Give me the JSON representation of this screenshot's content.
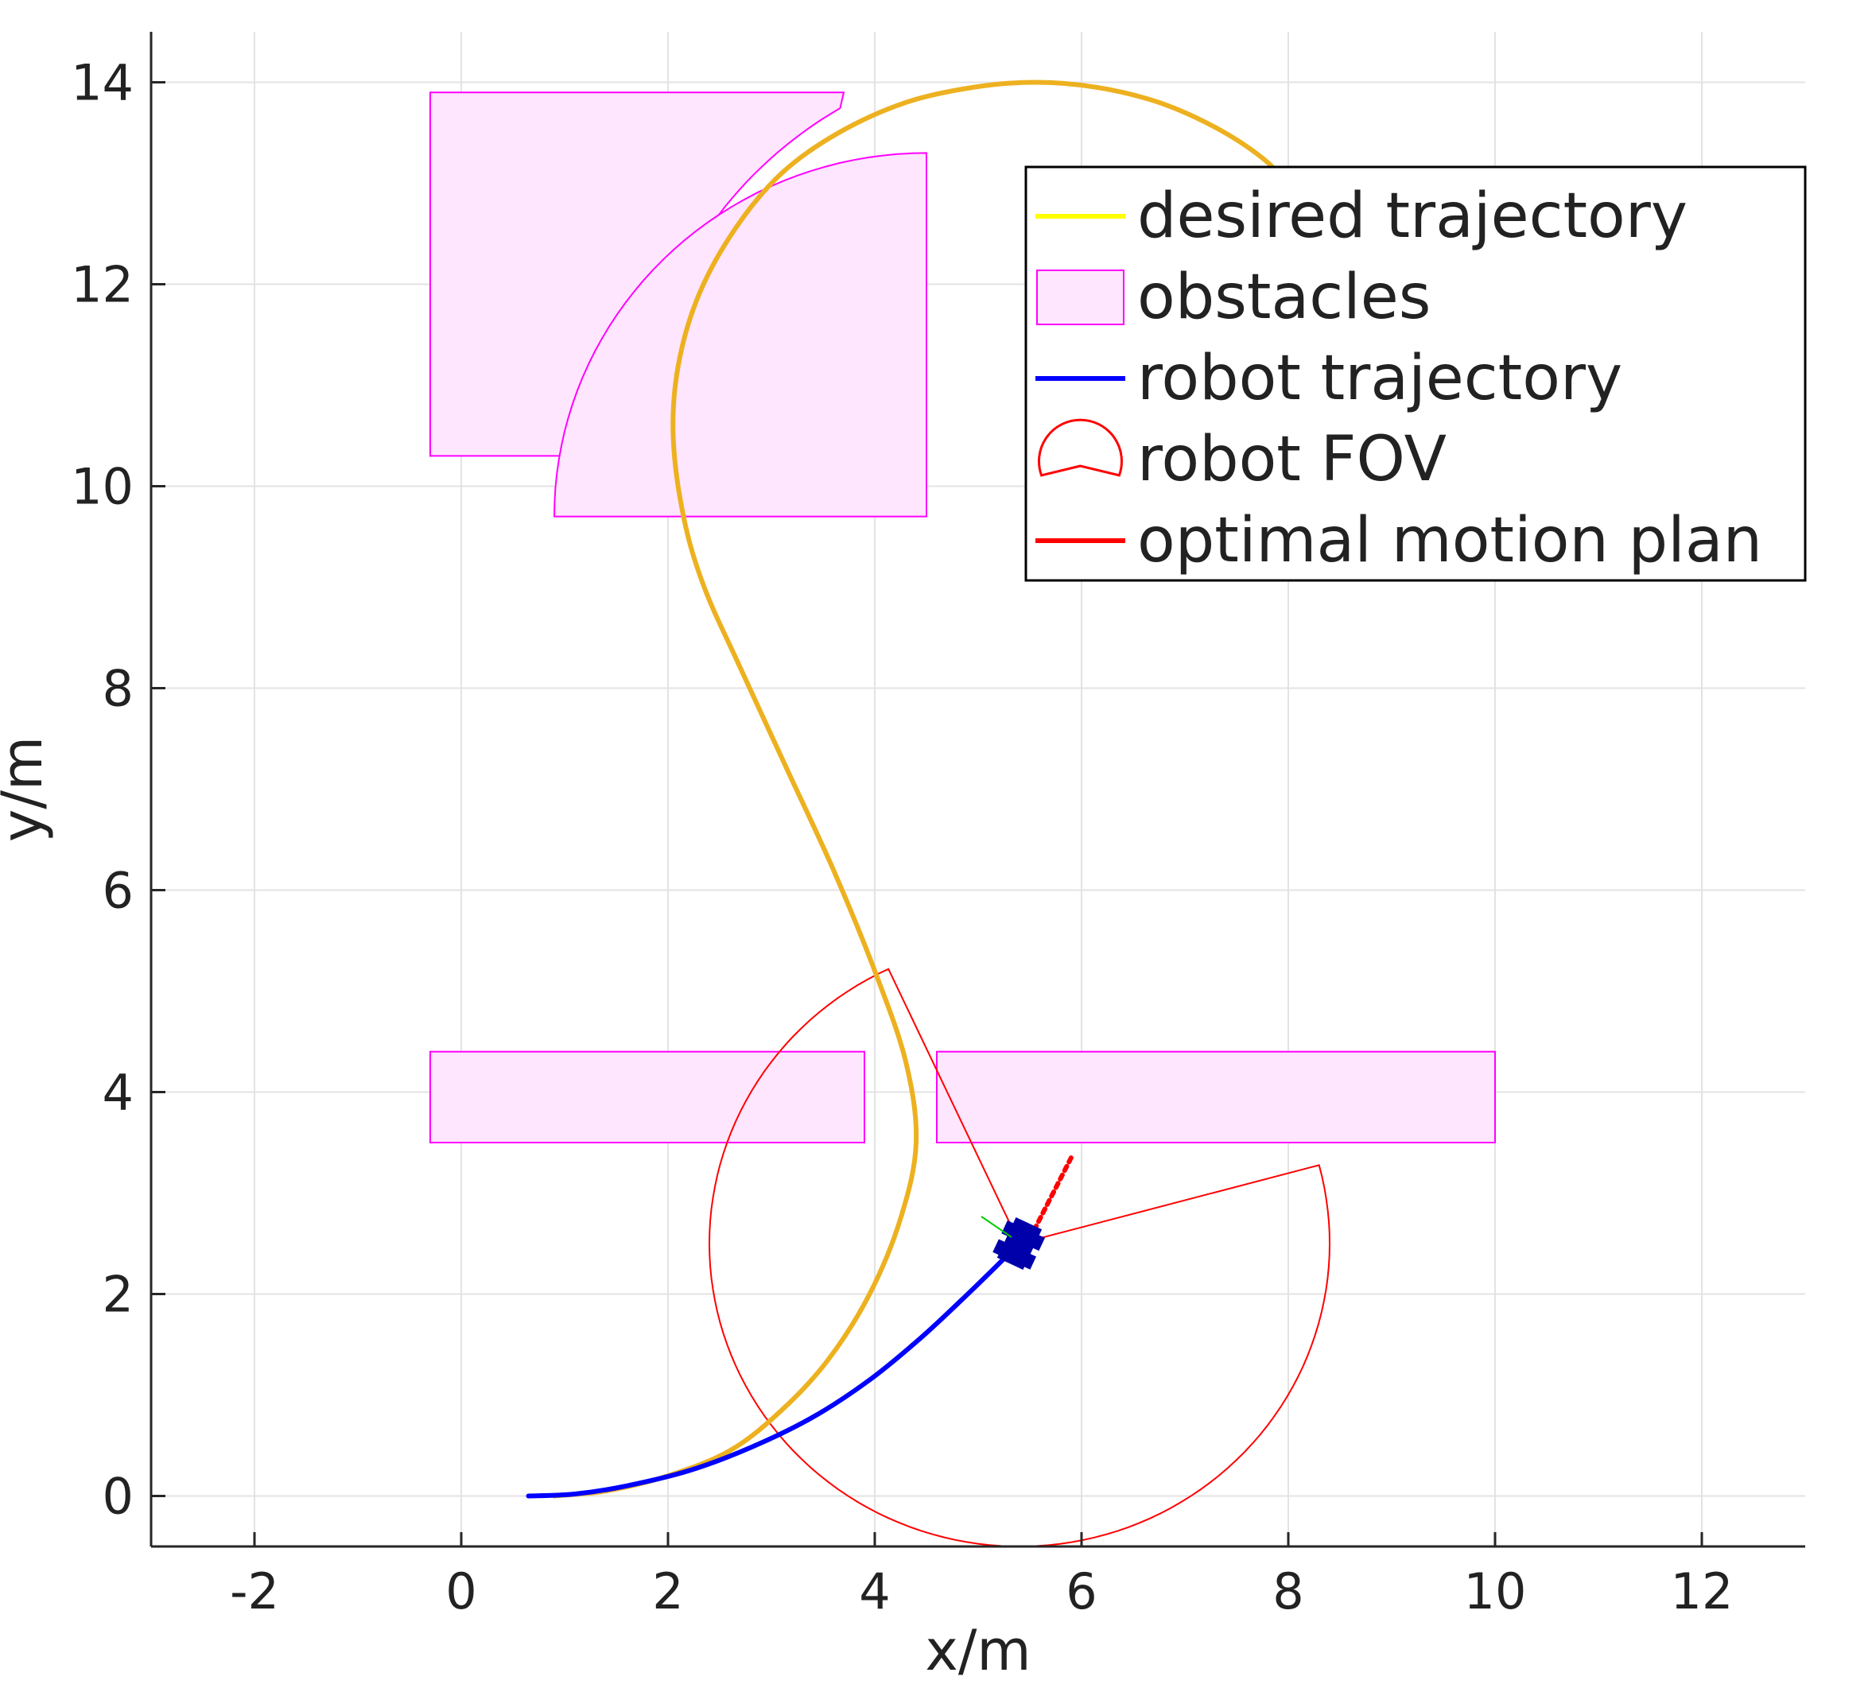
{
  "chart_data": {
    "type": "line",
    "xlabel": "x/m",
    "ylabel": "y/m",
    "xlim": [
      -3,
      13
    ],
    "ylim": [
      -0.5,
      14.5
    ],
    "xticks": [
      -2,
      0,
      2,
      4,
      6,
      8,
      10,
      12
    ],
    "yticks": [
      0,
      2,
      4,
      6,
      8,
      10,
      12,
      14
    ],
    "xtick_labels": [
      "-2",
      "0",
      "2",
      "4",
      "6",
      "8",
      "10",
      "12"
    ],
    "ytick_labels": [
      "0",
      "2",
      "4",
      "6",
      "8",
      "10",
      "12",
      "14"
    ],
    "grid": true,
    "legend_position": "top-right",
    "legend": [
      {
        "key": "desired",
        "label": "desired trajectory",
        "color": "#FFFF00",
        "symbol": "line"
      },
      {
        "key": "obstacles",
        "label": "obstacles",
        "color": "#FF00FF",
        "fill": "#FFE6FF",
        "symbol": "rect"
      },
      {
        "key": "robot",
        "label": "robot trajectory",
        "color": "#0000FF",
        "symbol": "line"
      },
      {
        "key": "fov",
        "label": "robot FOV",
        "color": "#FF0000",
        "symbol": "sector"
      },
      {
        "key": "plan",
        "label": "optimal motion plan",
        "color": "#FF0000",
        "symbol": "line"
      }
    ],
    "series": [
      {
        "name": "desired trajectory",
        "color": "#EDB120",
        "points": [
          [
            0.9,
            0.0
          ],
          [
            1.4,
            0.05
          ],
          [
            2.0,
            0.2
          ],
          [
            2.6,
            0.45
          ],
          [
            3.1,
            0.85
          ],
          [
            3.55,
            1.35
          ],
          [
            3.95,
            2.0
          ],
          [
            4.25,
            2.75
          ],
          [
            4.4,
            3.5
          ],
          [
            4.3,
            4.3
          ],
          [
            4.0,
            5.2
          ],
          [
            3.6,
            6.2
          ],
          [
            3.15,
            7.2
          ],
          [
            2.7,
            8.2
          ],
          [
            2.35,
            9.0
          ],
          [
            2.15,
            9.7
          ],
          [
            2.05,
            10.5
          ],
          [
            2.1,
            11.2
          ],
          [
            2.3,
            11.9
          ],
          [
            2.65,
            12.55
          ],
          [
            3.1,
            13.1
          ],
          [
            3.65,
            13.5
          ],
          [
            4.3,
            13.8
          ],
          [
            4.95,
            13.95
          ],
          [
            5.55,
            14.0
          ],
          [
            6.15,
            13.95
          ],
          [
            6.75,
            13.8
          ],
          [
            7.3,
            13.55
          ],
          [
            7.75,
            13.25
          ],
          [
            8.1,
            12.9
          ]
        ]
      },
      {
        "name": "robot trajectory",
        "color": "#0000FF",
        "points": [
          [
            0.65,
            0.0
          ],
          [
            1.1,
            0.02
          ],
          [
            1.6,
            0.1
          ],
          [
            2.2,
            0.25
          ],
          [
            2.8,
            0.48
          ],
          [
            3.4,
            0.78
          ],
          [
            3.95,
            1.15
          ],
          [
            4.45,
            1.57
          ],
          [
            4.9,
            2.0
          ],
          [
            5.25,
            2.35
          ]
        ]
      },
      {
        "name": "optimal motion plan",
        "color": "#FF0000",
        "points": [
          [
            5.5,
            2.55
          ],
          [
            5.6,
            2.75
          ],
          [
            5.7,
            2.95
          ],
          [
            5.8,
            3.15
          ],
          [
            5.9,
            3.35
          ]
        ]
      }
    ],
    "obstacles": [
      {
        "kind": "rect",
        "x0": -0.3,
        "x1": 3.9,
        "y0": 3.5,
        "y1": 4.4
      },
      {
        "kind": "rect",
        "x0": 4.6,
        "x1": 10.0,
        "y0": 3.5,
        "y1": 4.4
      },
      {
        "kind": "rect-arc-cut",
        "x0": -0.3,
        "xr": 3.7,
        "y0": 10.3,
        "y1": 13.9,
        "arc_center": [
          5.7,
          10.3
        ],
        "arc_radius": 4.0
      },
      {
        "kind": "quarter-sector",
        "x_arc": 2.5,
        "x1": 4.5,
        "y0": 9.7,
        "y1": 13.3,
        "arc_center": [
          4.5,
          9.7
        ],
        "arc_radius": 3.6
      }
    ],
    "robot": {
      "x": 5.4,
      "y": 2.5,
      "heading_deg": 65,
      "color": "#0000AA"
    },
    "fov": {
      "center": [
        5.4,
        2.5
      ],
      "radius": 3.0,
      "start_deg": 15,
      "end_deg": 115,
      "color": "#FF0000",
      "note_arc_drawn": "major"
    }
  }
}
